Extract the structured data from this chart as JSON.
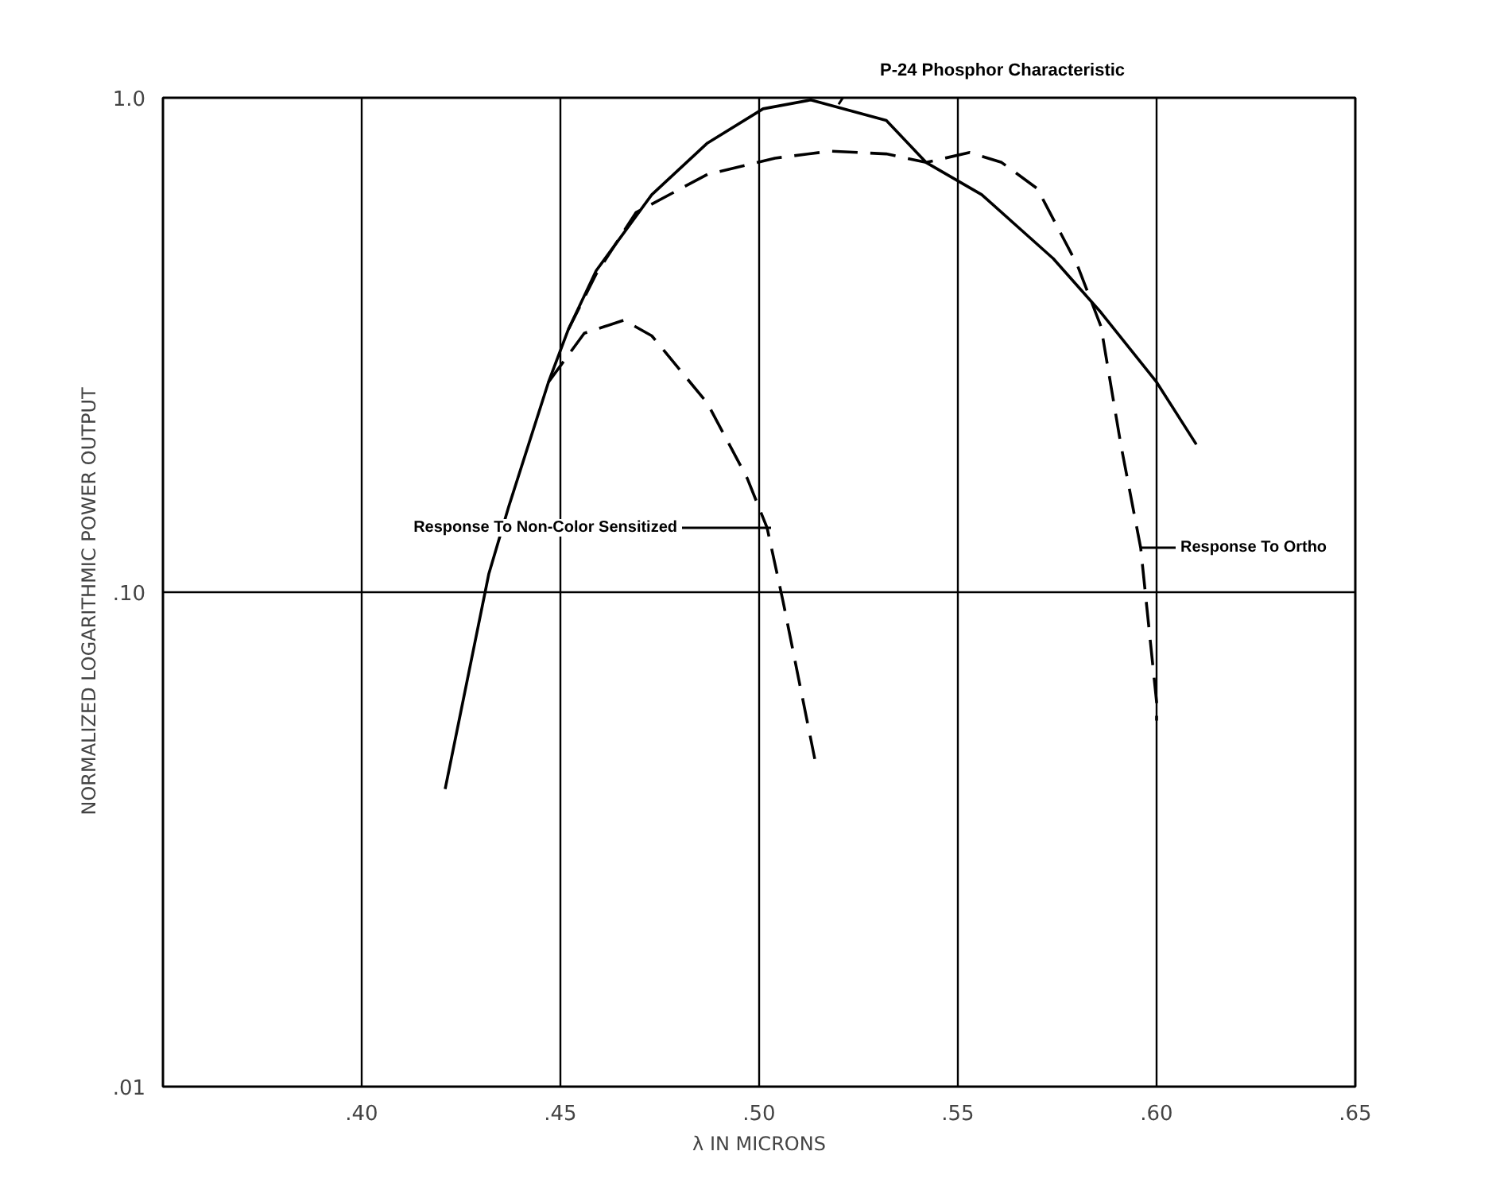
{
  "chart_data": {
    "type": "line",
    "xlabel": "λ IN MICRONS",
    "ylabel": "NORMALIZED  LOGARITHMIC  POWER  OUTPUT",
    "log": "y",
    "grid": true,
    "marker": "none",
    "xlim": [
      0.35,
      0.65
    ],
    "xticks": [
      {
        "value": 0.4,
        "label": ".40"
      },
      {
        "value": 0.45,
        "label": ".45"
      },
      {
        "value": 0.5,
        "label": ".50"
      },
      {
        "value": 0.55,
        "label": ".55"
      },
      {
        "value": 0.6,
        "label": ".60"
      },
      {
        "value": 0.65,
        "label": ".65"
      }
    ],
    "ylim": [
      0.01,
      1.0
    ],
    "yticks": [
      {
        "value": 0.01,
        "label": ".01"
      },
      {
        "value": 0.1,
        "label": ".10"
      },
      {
        "value": 1.0,
        "label": "1.0"
      }
    ],
    "series": [
      {
        "color": "#000000",
        "line_style": "solid",
        "x": [
          0.421,
          0.432,
          0.437,
          0.447,
          0.452,
          0.459,
          0.473,
          0.487,
          0.501,
          0.513,
          0.532,
          0.542,
          0.556,
          0.574,
          0.586,
          0.6,
          0.61
        ],
        "values": [
          0.04,
          0.109,
          0.149,
          0.266,
          0.34,
          0.447,
          0.637,
          0.81,
          0.95,
          0.99,
          0.9,
          0.74,
          0.637,
          0.473,
          0.368,
          0.266,
          0.199
        ]
      },
      {
        "color": "#000000",
        "line_style": "dashed",
        "x": [
          0.452,
          0.459,
          0.469,
          0.487,
          0.504,
          0.518,
          0.532,
          0.542,
          0.553,
          0.561,
          0.57,
          0.58,
          0.586,
          0.591,
          0.596,
          0.6,
          0.6
        ],
        "values": [
          0.34,
          0.44,
          0.586,
          0.7,
          0.755,
          0.78,
          0.77,
          0.74,
          0.775,
          0.74,
          0.655,
          0.46,
          0.345,
          0.199,
          0.123,
          0.06,
          0.055
        ]
      },
      {
        "color": "#000000",
        "line_style": "dashed",
        "x": [
          0.447,
          0.456,
          0.466,
          0.473,
          0.487,
          0.497,
          0.502,
          0.506,
          0.514
        ],
        "values": [
          0.266,
          0.334,
          0.355,
          0.33,
          0.241,
          0.17,
          0.135,
          0.096,
          0.046
        ]
      }
    ],
    "annotations": [
      {
        "text": "P-24 Phosphor Characteristic",
        "x": 0.52,
        "y": 0.97
      },
      {
        "text": "Response To Non-Color Sensitized",
        "x": 0.503,
        "y": 0.135
      },
      {
        "text": "Response To Ortho",
        "x": 0.596,
        "y": 0.123
      }
    ]
  }
}
